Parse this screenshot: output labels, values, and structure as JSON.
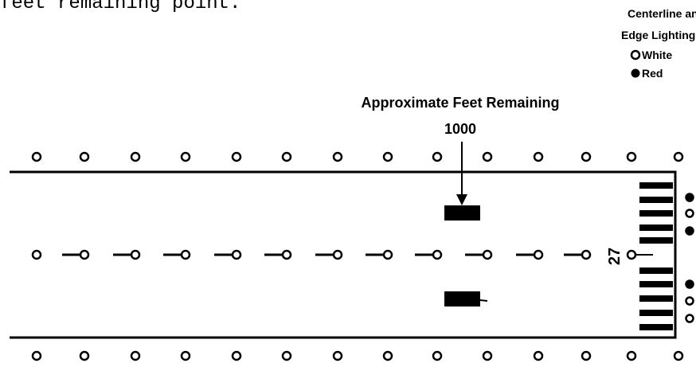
{
  "caption": "feet remaining point.",
  "legend": {
    "title_line1": "Centerline and",
    "title_line2": "Edge Lighting",
    "white": "White",
    "red": "Red"
  },
  "annotation": {
    "title": "Approximate Feet Remaining",
    "distance": "1000"
  },
  "runway_number": "27"
}
